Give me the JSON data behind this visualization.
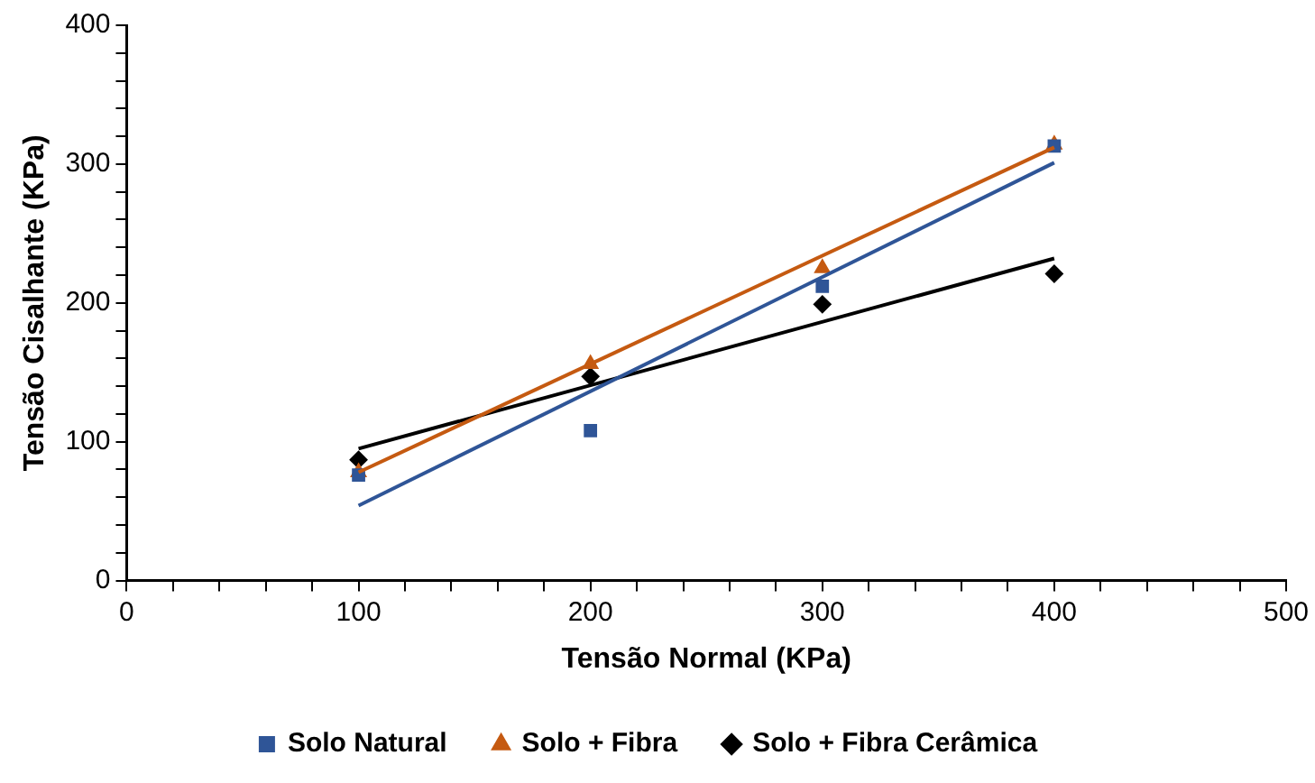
{
  "chart_data": {
    "type": "scatter",
    "xlabel": "Tensão Normal (KPa)",
    "ylabel": "Tensão Cisalhante (KPa)",
    "xlim": [
      0,
      500
    ],
    "xticks": [
      0,
      {
        "value": 20,
        "label": null
      },
      {
        "value": 40,
        "label": null
      },
      {
        "value": 60,
        "label": null
      },
      {
        "value": 80,
        "label": null
      },
      100,
      {
        "value": 120,
        "label": null
      },
      {
        "value": 140,
        "label": null
      },
      {
        "value": 160,
        "label": null
      },
      {
        "value": 180,
        "label": null
      },
      200,
      {
        "value": 220,
        "label": null
      },
      {
        "value": 240,
        "label": null
      },
      {
        "value": 260,
        "label": null
      },
      {
        "value": 280,
        "label": null
      },
      300,
      {
        "value": 320,
        "label": null
      },
      {
        "value": 340,
        "label": null
      },
      {
        "value": 360,
        "label": null
      },
      {
        "value": 380,
        "label": null
      },
      400,
      {
        "value": 420,
        "label": null
      },
      {
        "value": 440,
        "label": null
      },
      {
        "value": 460,
        "label": null
      },
      {
        "value": 480,
        "label": null
      },
      500
    ],
    "ylim": [
      0,
      400
    ],
    "yticks": [
      0,
      {
        "value": 20,
        "label": null
      },
      {
        "value": 40,
        "label": null
      },
      {
        "value": 60,
        "label": null
      },
      {
        "value": 80,
        "label": null
      },
      100,
      {
        "value": 120,
        "label": null
      },
      {
        "value": 140,
        "label": null
      },
      {
        "value": 160,
        "label": null
      },
      {
        "value": 180,
        "label": null
      },
      200,
      {
        "value": 220,
        "label": null
      },
      {
        "value": 240,
        "label": null
      },
      {
        "value": 260,
        "label": null
      },
      {
        "value": 280,
        "label": null
      },
      300,
      {
        "value": 320,
        "label": null
      },
      {
        "value": 340,
        "label": null
      },
      {
        "value": 360,
        "label": null
      },
      {
        "value": 380,
        "label": null
      },
      400
    ],
    "grid": false,
    "legend": "bottom",
    "series": [
      {
        "type": "line",
        "color": "#2f5597",
        "x": [
          100,
          400
        ],
        "values": [
          54,
          301
        ],
        "marker": "none"
      },
      {
        "type": "line",
        "color": "#c55a11",
        "x": [
          100,
          400
        ],
        "values": [
          78,
          312
        ],
        "marker": "none"
      },
      {
        "type": "line",
        "color": "#000000",
        "x": [
          100,
          400
        ],
        "values": [
          95,
          232
        ],
        "marker": "none"
      },
      {
        "name": "Solo Natural",
        "color": "#2f5597",
        "x": [
          100,
          200,
          300,
          400
        ],
        "values": [
          76,
          108,
          212,
          313
        ],
        "marker": "square"
      },
      {
        "name": "Solo + Fibra",
        "color": "#c55a11",
        "x": [
          100,
          200,
          300,
          400
        ],
        "values": [
          78,
          156,
          225,
          314
        ],
        "marker": "triangle"
      },
      {
        "name": "Solo + Fibra Cerâmica",
        "color": "#000000",
        "x": [
          100,
          200,
          300,
          400
        ],
        "values": [
          87,
          147,
          199,
          221
        ],
        "marker": "diamond"
      }
    ]
  }
}
